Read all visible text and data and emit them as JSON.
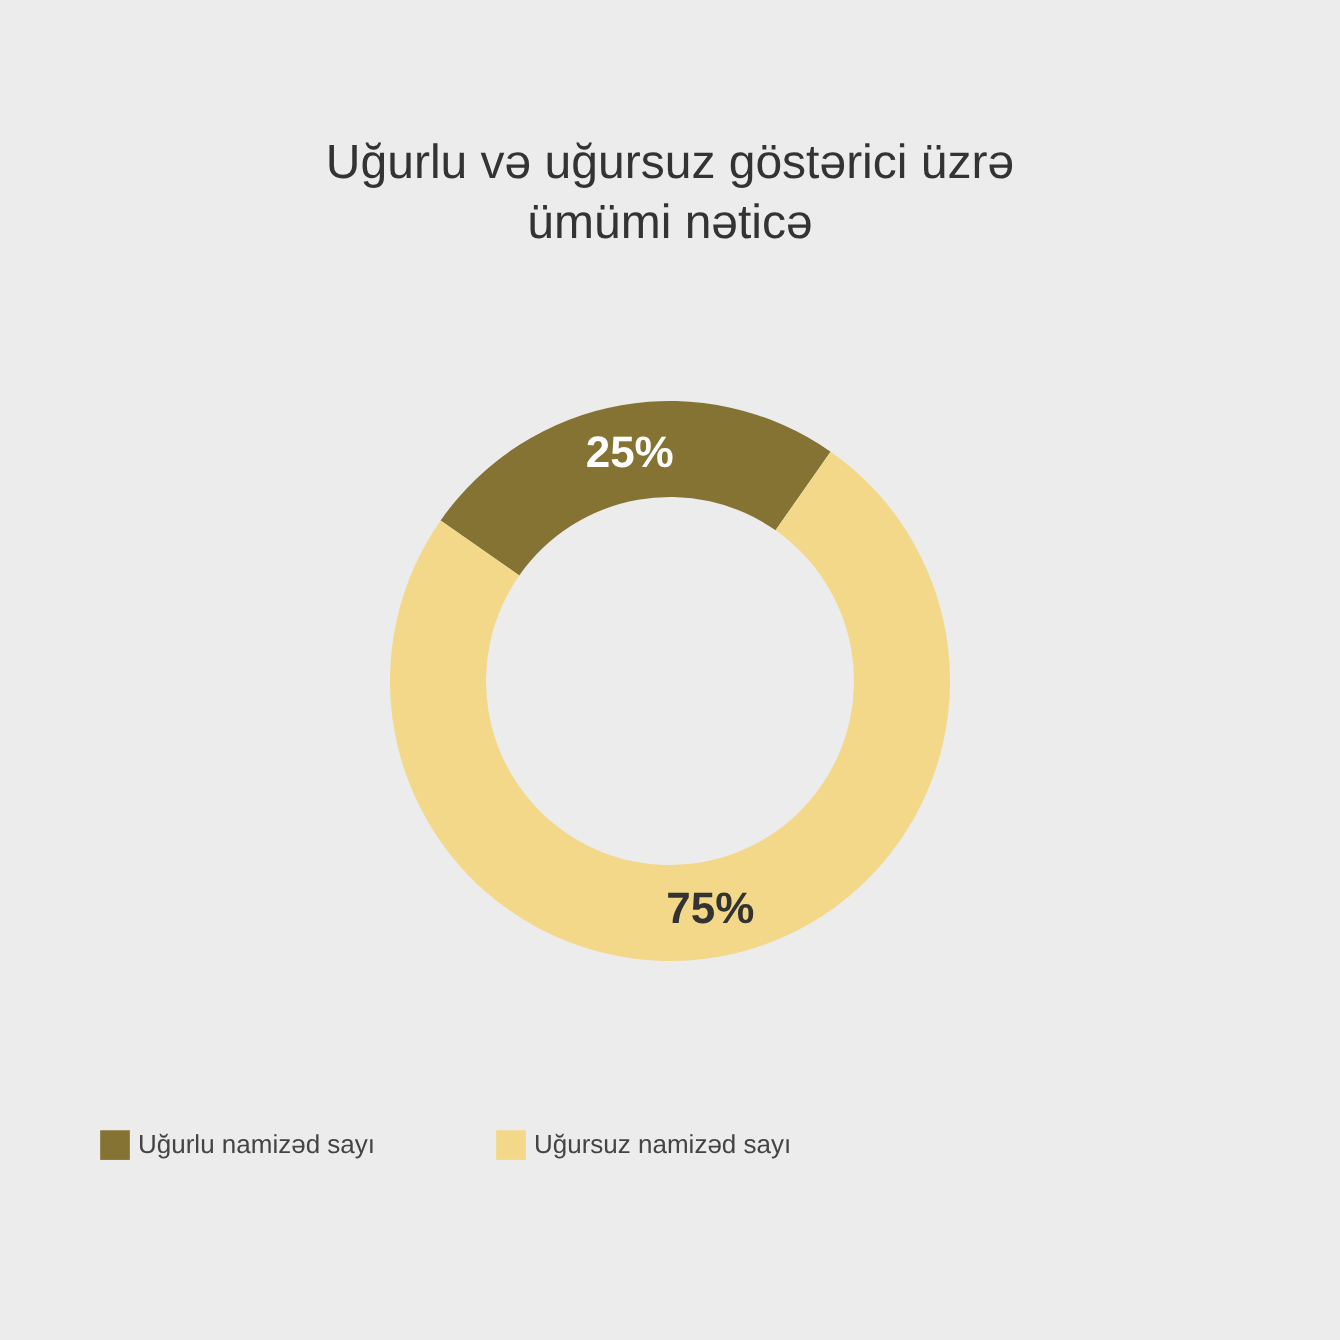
{
  "chart_data": {
    "type": "donut",
    "title": "Uğurlu və uğursuz göstərici üzrə ümümi nəticə",
    "categories": [
      "Uğurlu namizəd sayı",
      "Uğursuz namizəd sayı"
    ],
    "values": [
      25,
      75
    ],
    "colors": [
      "#857333",
      "#f2d888"
    ],
    "value_labels": [
      "25%",
      "75%"
    ],
    "legend": "bottom"
  }
}
